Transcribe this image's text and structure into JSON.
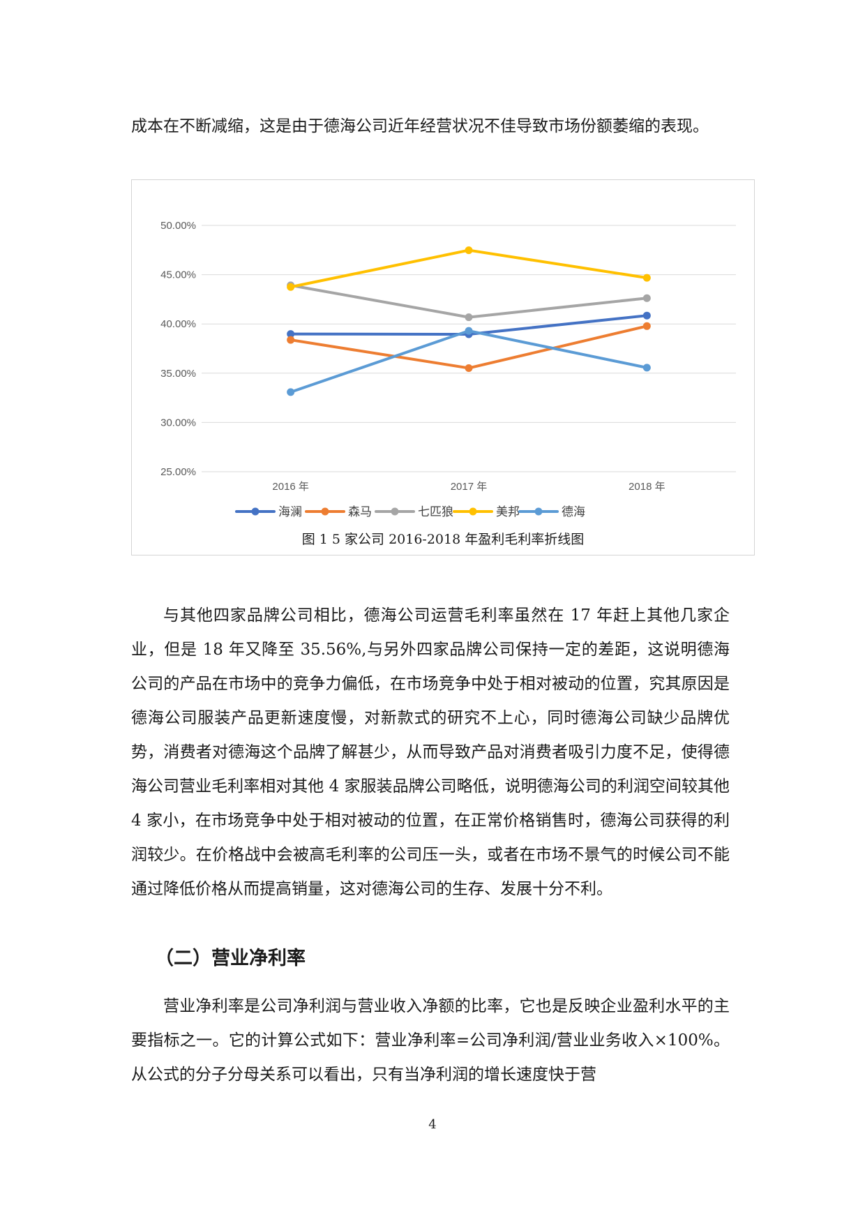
{
  "paragraphs": {
    "p1": "成本在不断减缩，这是由于德海公司近年经营状况不佳导致市场份额萎缩的表现。",
    "p2": "与其他四家品牌公司相比，德海公司运营毛利率虽然在 17 年赶上其他几家企业，但是 18 年又降至 35.56%,与另外四家品牌公司保持一定的差距，这说明德海公司的产品在市场中的竞争力偏低，在市场竞争中处于相对被动的位置，究其原因是德海公司服装产品更新速度慢，对新款式的研究不上心，同时德海公司缺少品牌优势，消费者对德海这个品牌了解甚少，从而导致产品对消费者吸引力度不足，使得德海公司营业毛利率相对其他 4 家服装品牌公司略低，说明德海公司的利润空间较其他 4 家小，在市场竞争中处于相对被动的位置，在正常价格销售时，德海公司获得的利润较少。在价格战中会被高毛利率的公司压一头，或者在市场不景气的时候公司不能通过降低价格从而提高销量，这对德海公司的生存、发展十分不利。",
    "p3": "营业净利率是公司净利润与营业收入净额的比率，它也是反映企业盈利水平的主要指标之一。它的计算公式如下：营业净利率=公司净利润/营业业务收入×100%。从公式的分子分母关系可以看出，只有当净利润的增长速度快于营"
  },
  "section_heading": "（二）营业净利率",
  "figure_caption": "图 1 5 家公司 2016-2018 年盈利毛利率折线图",
  "page_number": "4",
  "chart_data": {
    "type": "line",
    "categories": [
      "2016 年",
      "2017 年",
      "2018 年"
    ],
    "y_ticks": [
      "50.00%",
      "45.00%",
      "40.00%",
      "35.00%",
      "30.00%",
      "25.00%"
    ],
    "ylim": [
      25,
      50
    ],
    "grid": true,
    "legend_position": "bottom",
    "series": [
      {
        "name": "海澜",
        "color": "#4472C4",
        "values": [
          38.98,
          38.95,
          40.85
        ]
      },
      {
        "name": "森马",
        "color": "#ED7D31",
        "values": [
          38.38,
          35.52,
          39.78
        ]
      },
      {
        "name": "七匹狼",
        "color": "#A5A5A5",
        "values": [
          43.92,
          40.68,
          42.62
        ]
      },
      {
        "name": "美邦",
        "color": "#FFC000",
        "values": [
          43.75,
          47.48,
          44.68
        ]
      },
      {
        "name": "德海",
        "color": "#5B9BD5",
        "values": [
          33.08,
          39.3,
          35.56
        ]
      }
    ]
  }
}
